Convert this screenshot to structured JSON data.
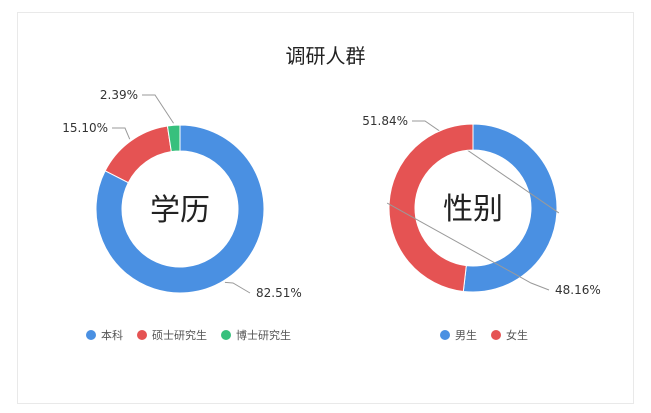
{
  "title": "调研人群",
  "chart_data": [
    {
      "type": "pie",
      "center_label": "学历",
      "slices": [
        {
          "name": "本科",
          "value": 82.51,
          "label": "82.51%",
          "color": "#4a90e2"
        },
        {
          "name": "硕士研究生",
          "value": 15.1,
          "label": "15.10%",
          "color": "#e55353"
        },
        {
          "name": "博士研究生",
          "value": 2.39,
          "label": "2.39%",
          "color": "#37c07d"
        }
      ],
      "legend": "bottom"
    },
    {
      "type": "pie",
      "center_label": "性别",
      "slices": [
        {
          "name": "男生",
          "value": 51.84,
          "label": "51.84%",
          "color": "#4a90e2"
        },
        {
          "name": "女生",
          "value": 48.16,
          "label": "48.16%",
          "color": "#e55353"
        }
      ],
      "legend": "bottom"
    }
  ]
}
